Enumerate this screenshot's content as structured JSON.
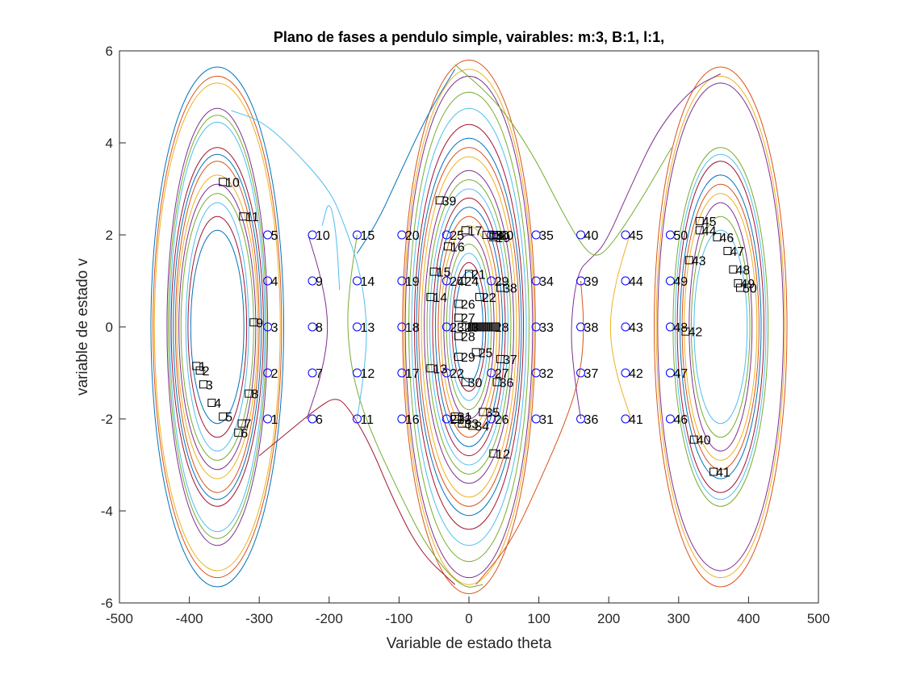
{
  "chart_data": {
    "type": "line",
    "title": "Plano de fases a pendulo simple, vairables: m:3, B:1, l:1,",
    "xlabel": "Variable de estado theta",
    "ylabel": "variable de estado v",
    "xlim": [
      -500,
      500
    ],
    "ylim": [
      -6,
      6
    ],
    "xticks": [
      -500,
      -400,
      -300,
      -200,
      -100,
      0,
      100,
      200,
      300,
      400,
      500
    ],
    "yticks": [
      -6,
      -4,
      -2,
      0,
      2,
      4,
      6
    ],
    "grid": false,
    "line_colors": [
      "#0072BD",
      "#D95319",
      "#EDB120",
      "#7E2F8E",
      "#77AC30",
      "#4DBEEE",
      "#A2142F"
    ],
    "initial_marker_color": "#0000FF",
    "final_marker_color": "#000000",
    "centers": [
      -360,
      0,
      360
    ],
    "orbits": [
      {
        "cx": -360,
        "rx": 95,
        "ry": 5.65
      },
      {
        "cx": -360,
        "rx": 92,
        "ry": 5.45
      },
      {
        "cx": -360,
        "rx": 90,
        "ry": 5.3
      },
      {
        "cx": -360,
        "rx": 72,
        "ry": 4.75
      },
      {
        "cx": -360,
        "rx": 70,
        "ry": 4.6
      },
      {
        "cx": -360,
        "rx": 68,
        "ry": 4.45
      },
      {
        "cx": -360,
        "rx": 66,
        "ry": 3.9
      },
      {
        "cx": -360,
        "rx": 63,
        "ry": 3.75
      },
      {
        "cx": -360,
        "rx": 60,
        "ry": 3.6
      },
      {
        "cx": -360,
        "rx": 58,
        "ry": 3.3
      },
      {
        "cx": -360,
        "rx": 55,
        "ry": 3.1
      },
      {
        "cx": -360,
        "rx": 52,
        "ry": 2.9
      },
      {
        "cx": -360,
        "rx": 45,
        "ry": 2.7
      },
      {
        "cx": -360,
        "rx": 42,
        "ry": 2.4
      },
      {
        "cx": -360,
        "rx": 38,
        "ry": 2.1
      },
      {
        "cx": 0,
        "rx": 95,
        "ry": 5.8
      },
      {
        "cx": 0,
        "rx": 93,
        "ry": 5.6
      },
      {
        "cx": 0,
        "rx": 91,
        "ry": 5.45
      },
      {
        "cx": 0,
        "rx": 86,
        "ry": 5.1
      },
      {
        "cx": 0,
        "rx": 82,
        "ry": 4.75
      },
      {
        "cx": 0,
        "rx": 78,
        "ry": 4.4
      },
      {
        "cx": 0,
        "rx": 75,
        "ry": 4.1
      },
      {
        "cx": 0,
        "rx": 72,
        "ry": 3.9
      },
      {
        "cx": 0,
        "rx": 68,
        "ry": 3.7
      },
      {
        "cx": 0,
        "rx": 64,
        "ry": 3.4
      },
      {
        "cx": 0,
        "rx": 60,
        "ry": 3.2
      },
      {
        "cx": 0,
        "rx": 56,
        "ry": 3.0
      },
      {
        "cx": 0,
        "rx": 52,
        "ry": 2.8
      },
      {
        "cx": 0,
        "rx": 48,
        "ry": 2.6
      },
      {
        "cx": 0,
        "rx": 44,
        "ry": 2.4
      },
      {
        "cx": 0,
        "rx": 40,
        "ry": 2.2
      },
      {
        "cx": 0,
        "rx": 36,
        "ry": 2.0
      },
      {
        "cx": 0,
        "rx": 32,
        "ry": 1.8
      },
      {
        "cx": 0,
        "rx": 28,
        "ry": 1.6
      },
      {
        "cx": 0,
        "rx": 24,
        "ry": 1.4
      },
      {
        "cx": 0,
        "rx": 20,
        "ry": 1.2
      },
      {
        "cx": 360,
        "rx": 95,
        "ry": 5.65
      },
      {
        "cx": 360,
        "rx": 92,
        "ry": 5.45
      },
      {
        "cx": 360,
        "rx": 90,
        "ry": 5.3
      },
      {
        "cx": 360,
        "rx": 68,
        "ry": 3.9
      },
      {
        "cx": 360,
        "rx": 65,
        "ry": 3.75
      },
      {
        "cx": 360,
        "rx": 62,
        "ry": 3.6
      },
      {
        "cx": 360,
        "rx": 58,
        "ry": 3.3
      },
      {
        "cx": 360,
        "rx": 55,
        "ry": 3.1
      },
      {
        "cx": 360,
        "rx": 52,
        "ry": 2.9
      },
      {
        "cx": 360,
        "rx": 45,
        "ry": 2.7
      },
      {
        "cx": 360,
        "rx": 42,
        "ry": 2.4
      },
      {
        "cx": 360,
        "rx": 38,
        "ry": 2.1
      }
    ],
    "separatrix_curves": [
      {
        "points": [
          [
            -230,
            2
          ],
          [
            -210,
            1.0
          ],
          [
            -200,
            0
          ],
          [
            -210,
            -1.0
          ],
          [
            -232,
            -2
          ]
        ]
      },
      {
        "points": [
          [
            -160,
            2
          ],
          [
            -170,
            1.0
          ],
          [
            -175,
            0
          ],
          [
            -165,
            -1.2
          ],
          [
            -140,
            -2.3
          ],
          [
            -100,
            -3.6
          ],
          [
            -60,
            -4.8
          ],
          [
            -10,
            -5.7
          ],
          [
            20,
            -5.6
          ]
        ]
      },
      {
        "points": [
          [
            -160,
            -2
          ],
          [
            -150,
            -1.0
          ],
          [
            -145,
            0
          ],
          [
            -155,
            1.2
          ],
          [
            -180,
            2.3
          ],
          [
            -200,
            3.0
          ],
          [
            -260,
            4.0
          ],
          [
            -300,
            4.5
          ],
          [
            -340,
            4.7
          ]
        ]
      },
      {
        "points": [
          [
            -300,
            -2.8
          ],
          [
            -260,
            -2.3
          ],
          [
            -220,
            -1.8
          ],
          [
            -190,
            -1.5
          ],
          [
            -170,
            -1.8
          ],
          [
            -140,
            -2.6
          ],
          [
            -110,
            -3.7
          ],
          [
            -70,
            -4.9
          ],
          [
            -20,
            -5.6
          ]
        ]
      },
      {
        "points": [
          [
            -160,
            1.6
          ],
          [
            -130,
            2.3
          ],
          [
            -100,
            3.3
          ],
          [
            -60,
            4.6
          ],
          [
            -20,
            5.6
          ]
        ]
      },
      {
        "points": [
          [
            160,
            1.0
          ],
          [
            165,
            0
          ],
          [
            160,
            -1.0
          ],
          [
            140,
            -2.0
          ],
          [
            100,
            -3.4
          ],
          [
            60,
            -4.7
          ],
          [
            10,
            -5.6
          ]
        ]
      },
      {
        "points": [
          [
            230,
            2
          ],
          [
            210,
            1.0
          ],
          [
            200,
            0
          ],
          [
            210,
            -1.0
          ],
          [
            232,
            -2
          ]
        ]
      },
      {
        "points": [
          [
            160,
            -2
          ],
          [
            150,
            -1.0
          ],
          [
            145,
            0
          ],
          [
            155,
            1.2
          ],
          [
            175,
            1.5
          ],
          [
            195,
            1.8
          ],
          [
            230,
            3.0
          ],
          [
            270,
            4.3
          ],
          [
            320,
            5.2
          ],
          [
            360,
            5.5
          ]
        ]
      },
      {
        "points": [
          [
            -20,
            5.7
          ],
          [
            40,
            4.9
          ],
          [
            90,
            3.8
          ],
          [
            130,
            2.6
          ],
          [
            160,
            1.8
          ],
          [
            180,
            1.5
          ],
          [
            200,
            1.7
          ],
          [
            240,
            2.6
          ],
          [
            290,
            3.9
          ]
        ]
      },
      {
        "points": [
          [
            -210,
            2.2
          ],
          [
            -200,
            2.8
          ],
          [
            -190,
            2.1
          ],
          [
            -185,
            0.8
          ]
        ]
      }
    ],
    "initial_points": {
      "thetas": [
        -288,
        -224,
        -160,
        -96,
        -32,
        32,
        96,
        160,
        224,
        288
      ],
      "vs": [
        -2,
        -1,
        0,
        1,
        2
      ],
      "labels": [
        "1",
        "2",
        "3",
        "4",
        "5",
        "6",
        "7",
        "8",
        "9",
        "10",
        "11",
        "12",
        "13",
        "14",
        "15",
        "16",
        "17",
        "18",
        "19",
        "20",
        "21",
        "22",
        "23",
        "24",
        "25",
        "26",
        "27",
        "28",
        "29",
        "30",
        "31",
        "32",
        "33",
        "34",
        "35",
        "36",
        "37",
        "38",
        "39",
        "40",
        "41",
        "42",
        "43",
        "44",
        "45",
        "46",
        "47",
        "48",
        "49",
        "50"
      ]
    },
    "final_points": [
      {
        "label": "1",
        "x": -390,
        "y": -0.85
      },
      {
        "label": "2",
        "x": -385,
        "y": -0.95
      },
      {
        "label": "3",
        "x": -380,
        "y": -1.25
      },
      {
        "label": "4",
        "x": -368,
        "y": -1.65
      },
      {
        "label": "5",
        "x": -352,
        "y": -1.95
      },
      {
        "label": "6",
        "x": -330,
        "y": -2.3
      },
      {
        "label": "7",
        "x": -325,
        "y": -2.1
      },
      {
        "label": "8",
        "x": -315,
        "y": -1.45
      },
      {
        "label": "9",
        "x": -308,
        "y": 0.1
      },
      {
        "label": "10",
        "x": -352,
        "y": 3.15
      },
      {
        "label": "11",
        "x": -323,
        "y": 2.4
      },
      {
        "label": "12",
        "x": 35,
        "y": -2.75
      },
      {
        "label": "13",
        "x": -55,
        "y": -0.9
      },
      {
        "label": "14",
        "x": -55,
        "y": 0.65
      },
      {
        "label": "15",
        "x": -50,
        "y": 1.2
      },
      {
        "label": "16",
        "x": -30,
        "y": 1.75
      },
      {
        "label": "17",
        "x": -5,
        "y": 2.1
      },
      {
        "label": "18",
        "x": 25,
        "y": 2.0
      },
      {
        "label": "19",
        "x": 35,
        "y": 1.95
      },
      {
        "label": "20",
        "x": 40,
        "y": 2.0
      },
      {
        "label": "21",
        "x": 0,
        "y": 1.15
      },
      {
        "label": "22",
        "x": 15,
        "y": 0.65
      },
      {
        "label": "23",
        "x": -10,
        "y": 0
      },
      {
        "label": "24",
        "x": -10,
        "y": 1.0
      },
      {
        "label": "25",
        "x": 10,
        "y": -0.55
      },
      {
        "label": "26",
        "x": -15,
        "y": 0.5
      },
      {
        "label": "27",
        "x": -15,
        "y": 0.2
      },
      {
        "label": "28",
        "x": -15,
        "y": -0.2
      },
      {
        "label": "29",
        "x": -15,
        "y": -0.65
      },
      {
        "label": "30",
        "x": -5,
        "y": -1.2
      },
      {
        "label": "31",
        "x": -20,
        "y": -1.95
      },
      {
        "label": "32",
        "x": -20,
        "y": -2.0
      },
      {
        "label": "33",
        "x": -10,
        "y": -2.1
      },
      {
        "label": "34",
        "x": 5,
        "y": -2.15
      },
      {
        "label": "35",
        "x": 20,
        "y": -1.85
      },
      {
        "label": "36",
        "x": 40,
        "y": -1.2
      },
      {
        "label": "37",
        "x": 45,
        "y": -0.7
      },
      {
        "label": "38",
        "x": 45,
        "y": 0.85
      },
      {
        "label": "39",
        "x": -42,
        "y": 2.75
      },
      {
        "label": "40",
        "x": 322,
        "y": -2.45
      },
      {
        "label": "41",
        "x": 350,
        "y": -3.15
      },
      {
        "label": "42",
        "x": 310,
        "y": -0.1
      },
      {
        "label": "43",
        "x": 315,
        "y": 1.45
      },
      {
        "label": "44",
        "x": 330,
        "y": 2.1
      },
      {
        "label": "45",
        "x": 330,
        "y": 2.3
      },
      {
        "label": "46",
        "x": 355,
        "y": 1.95
      },
      {
        "label": "47",
        "x": 370,
        "y": 1.65
      },
      {
        "label": "48",
        "x": 378,
        "y": 1.25
      },
      {
        "label": "49",
        "x": 385,
        "y": 0.95
      },
      {
        "label": "50",
        "x": 388,
        "y": 0.85
      }
    ],
    "final_cluster": {
      "x_start": 5,
      "x_end": 40,
      "y": 0
    }
  }
}
